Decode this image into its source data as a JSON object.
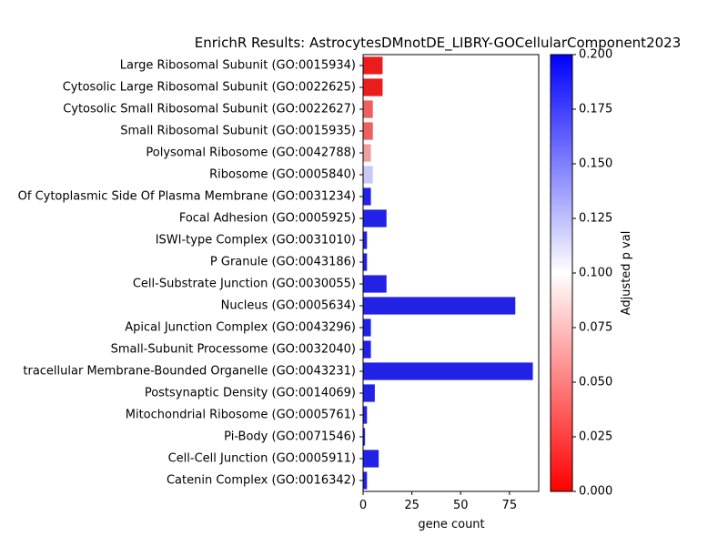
{
  "chart_data": {
    "type": "bar",
    "orientation": "horizontal",
    "title": "EnrichR Results: AstrocytesDMnotDE_LIBRY-GOCellularComponent2023",
    "xlabel": "gene count",
    "ylabel": "",
    "xlim": [
      0,
      90
    ],
    "x_ticks": [
      0,
      25,
      50,
      75
    ],
    "categories": [
      "Large Ribosomal Subunit (GO:0015934)",
      "Cytosolic Large Ribosomal Subunit (GO:0022625)",
      "Cytosolic Small Ribosomal Subunit (GO:0022627)",
      "Small Ribosomal Subunit (GO:0015935)",
      "Polysomal Ribosome (GO:0042788)",
      "Ribosome (GO:0005840)",
      "Of Cytoplasmic Side Of Plasma Membrane (GO:0031234)",
      "Focal Adhesion (GO:0005925)",
      "ISWI-type Complex (GO:0031010)",
      "P Granule (GO:0043186)",
      "Cell-Substrate Junction (GO:0030055)",
      "Nucleus (GO:0005634)",
      "Apical Junction Complex (GO:0043296)",
      "Small-Subunit Processome (GO:0032040)",
      "tracellular Membrane-Bounded Organelle (GO:0043231)",
      "Postsynaptic Density (GO:0014069)",
      "Mitochondrial Ribosome (GO:0005761)",
      "Pi-Body (GO:0071546)",
      "Cell-Cell Junction (GO:0005911)",
      "Catenin Complex (GO:0016342)"
    ],
    "values": [
      10,
      10,
      5,
      5,
      4,
      5,
      4,
      12,
      2,
      2,
      12,
      78,
      4,
      4,
      87,
      6,
      2,
      1,
      8,
      2
    ],
    "colors": [
      "#ea1c1c",
      "#ea1c1c",
      "#ee5f5f",
      "#ee5f5f",
      "#f29c9c",
      "#c9c9f7",
      "#2222e6",
      "#2222e6",
      "#2222e6",
      "#2222e6",
      "#2222e6",
      "#2222e6",
      "#2222e6",
      "#2222e6",
      "#2222e6",
      "#2222e6",
      "#2222e6",
      "#2222e6",
      "#2222e6",
      "#2222e6"
    ],
    "colorbar": {
      "label": "Adjusted p val",
      "range": [
        0,
        0.2
      ],
      "ticks": [
        "0.000",
        "0.025",
        "0.050",
        "0.075",
        "0.100",
        "0.125",
        "0.150",
        "0.175",
        "0.200"
      ],
      "colormap": [
        "#ff0000",
        "#ffffff",
        "#0000ff"
      ]
    },
    "grid": false,
    "legend": "none"
  }
}
